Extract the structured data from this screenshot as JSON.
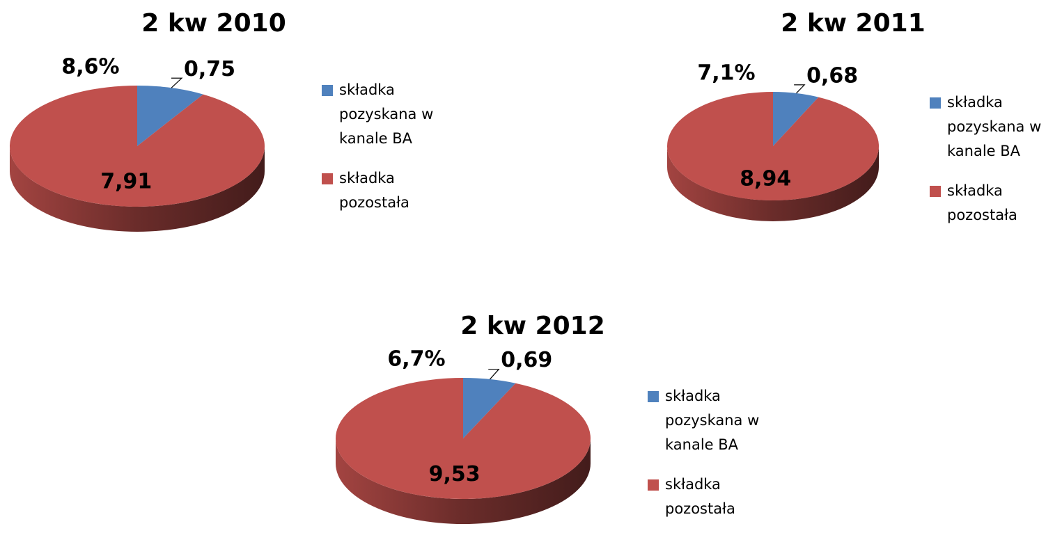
{
  "chart_data": [
    {
      "type": "pie",
      "title": "2 kw 2010",
      "annotation": "8,6%",
      "categories": [
        "składka pozyskana w kanale BA",
        "składka pozostała"
      ],
      "values": [
        0.75,
        7.91
      ],
      "value_labels": [
        "0,75",
        "7,91"
      ],
      "colors": [
        "#4f81bd",
        "#c0504d"
      ]
    },
    {
      "type": "pie",
      "title": "2 kw 2011",
      "annotation": "7,1%",
      "categories": [
        "składka pozyskana w kanale BA",
        "składka pozostała"
      ],
      "values": [
        0.68,
        8.94
      ],
      "value_labels": [
        "0,68",
        "8,94"
      ],
      "colors": [
        "#4f81bd",
        "#c0504d"
      ]
    },
    {
      "type": "pie",
      "title": "2 kw 2012",
      "annotation": "6,7%",
      "categories": [
        "składka pozyskana w kanale BA",
        "składka pozostała"
      ],
      "values": [
        0.69,
        9.53
      ],
      "value_labels": [
        "0,69",
        "9,53"
      ],
      "colors": [
        "#4f81bd",
        "#c0504d"
      ]
    }
  ]
}
